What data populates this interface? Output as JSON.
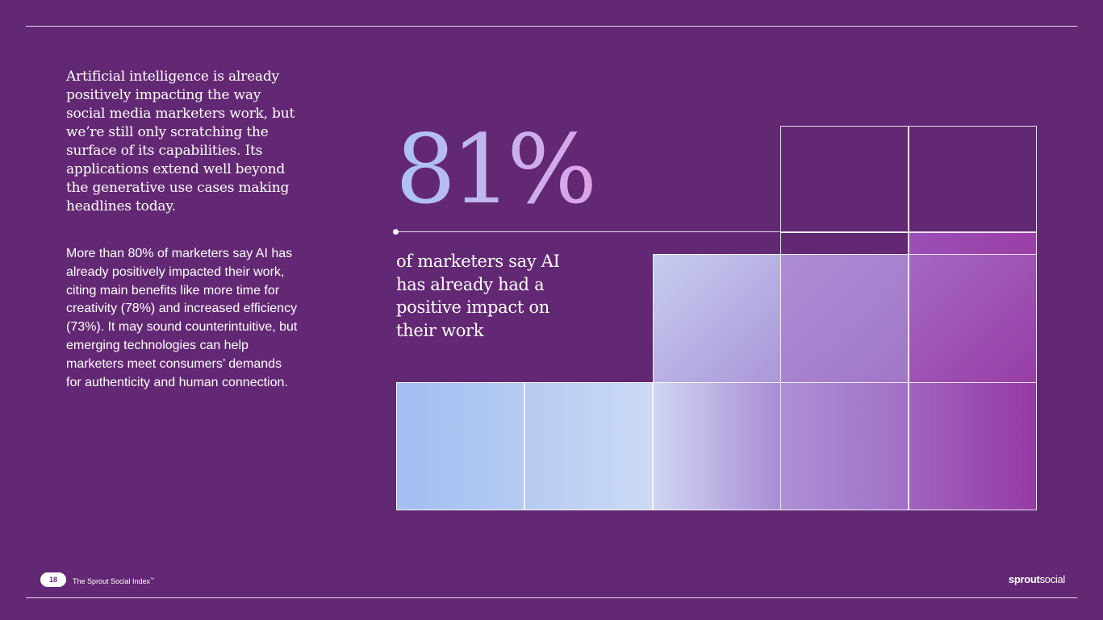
{
  "intro": "Artificial intelligence is already positively impacting the way social media marketers work, but we’re still only scratching the surface of its capabilities. Its applications extend well beyond the generative use cases making headlines today.",
  "body": "More than 80% of marketers say AI has already positively impacted their work, citing main benefits like more time for creativity (78%) and increased efficiency (73%). It may sound counterintuitive, but emerging technologies can help marketers meet consumers’ demands for authenticity and human connection.",
  "stat": {
    "value": "81%",
    "caption": "of marketers say AI has already had a positive impact on their work"
  },
  "footer": {
    "page_number": "18",
    "publication": "The Sprout Social Index",
    "trademark": "™",
    "logo_part1": "sprout",
    "logo_part2": "social"
  },
  "colors": {
    "background": "#632873",
    "accent_blue": "#a9c3f4",
    "accent_lavender": "#c7b3ee",
    "accent_magenta": "#9c3fa6"
  }
}
